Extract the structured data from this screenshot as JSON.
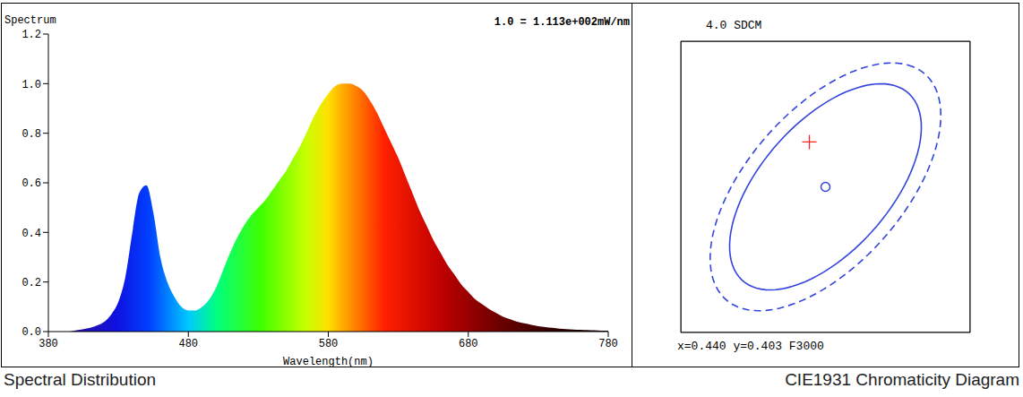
{
  "chart_data": [
    {
      "type": "area",
      "y_label": "Spectrum",
      "annotation": "1.0 = 1.113e+002mW/nm",
      "caption": "Spectral Distribution",
      "x_label": "Wavelength(nm)",
      "x": [
        380,
        385,
        390,
        395,
        400,
        405,
        410,
        415,
        420,
        425,
        430,
        435,
        440,
        445,
        450,
        455,
        460,
        465,
        470,
        475,
        480,
        485,
        490,
        495,
        500,
        505,
        510,
        515,
        520,
        525,
        530,
        535,
        540,
        545,
        550,
        555,
        560,
        565,
        570,
        575,
        580,
        585,
        590,
        595,
        600,
        605,
        610,
        615,
        620,
        625,
        630,
        635,
        640,
        645,
        650,
        655,
        660,
        665,
        670,
        675,
        680,
        685,
        690,
        695,
        700,
        705,
        710,
        715,
        720,
        725,
        730,
        735,
        740,
        745,
        750,
        755,
        760,
        765,
        770,
        775,
        780
      ],
      "values": [
        0,
        0,
        0,
        0,
        0.005,
        0.01,
        0.015,
        0.025,
        0.04,
        0.07,
        0.12,
        0.22,
        0.4,
        0.56,
        0.59,
        0.48,
        0.3,
        0.2,
        0.14,
        0.1,
        0.085,
        0.085,
        0.1,
        0.13,
        0.18,
        0.25,
        0.32,
        0.38,
        0.43,
        0.47,
        0.5,
        0.53,
        0.57,
        0.61,
        0.65,
        0.7,
        0.75,
        0.81,
        0.87,
        0.92,
        0.96,
        0.99,
        1.0,
        1.0,
        0.99,
        0.97,
        0.93,
        0.88,
        0.82,
        0.76,
        0.7,
        0.63,
        0.56,
        0.49,
        0.43,
        0.37,
        0.32,
        0.27,
        0.23,
        0.19,
        0.16,
        0.13,
        0.11,
        0.09,
        0.075,
        0.06,
        0.05,
        0.04,
        0.033,
        0.027,
        0.022,
        0.018,
        0.015,
        0.012,
        0.01,
        0.008,
        0.007,
        0.006,
        0.005,
        0.004,
        0.004
      ],
      "xlim": [
        380,
        780
      ],
      "xticks": [
        380,
        480,
        580,
        680,
        780
      ],
      "ylim": [
        0,
        1.2
      ],
      "yticks": [
        {
          "value": 0,
          "label": "0.0"
        },
        0.2,
        0.4,
        0.6,
        0.8,
        {
          "value": 1,
          "label": "1.0"
        },
        1.2
      ],
      "grid": false
    },
    {
      "type": "chromaticity",
      "title": "4.0 SDCM",
      "annotation": "x=0.440 y=0.403 F3000",
      "caption": "CIE1931 Chromaticity Diagram",
      "xlim": [
        0.431,
        0.449
      ],
      "xticks": [
        0.431,
        0.434,
        0.437,
        0.44,
        0.443,
        0.446,
        0.449
      ],
      "ylim": [
        0.391,
        0.415
      ],
      "yticks": [
        0.391,
        0.394,
        0.397,
        0.4,
        0.403,
        0.406,
        0.409,
        0.412,
        0.415
      ],
      "grid": true,
      "tick_labels": false,
      "center": {
        "x": 0.44,
        "y": 0.403,
        "color": "#3344dd",
        "marker": "circle"
      },
      "measured": {
        "x": 0.439,
        "y": 0.4067,
        "color": "#ff2222",
        "marker": "cross"
      },
      "ellipses": [
        {
          "a": 0.0094,
          "b": 0.0044,
          "angle": 61,
          "color": "#3344dd",
          "line_style": "solid"
        },
        {
          "a": 0.0113,
          "b": 0.0053,
          "angle": 61,
          "color": "#3344dd",
          "line_style": "dashed"
        }
      ]
    }
  ]
}
